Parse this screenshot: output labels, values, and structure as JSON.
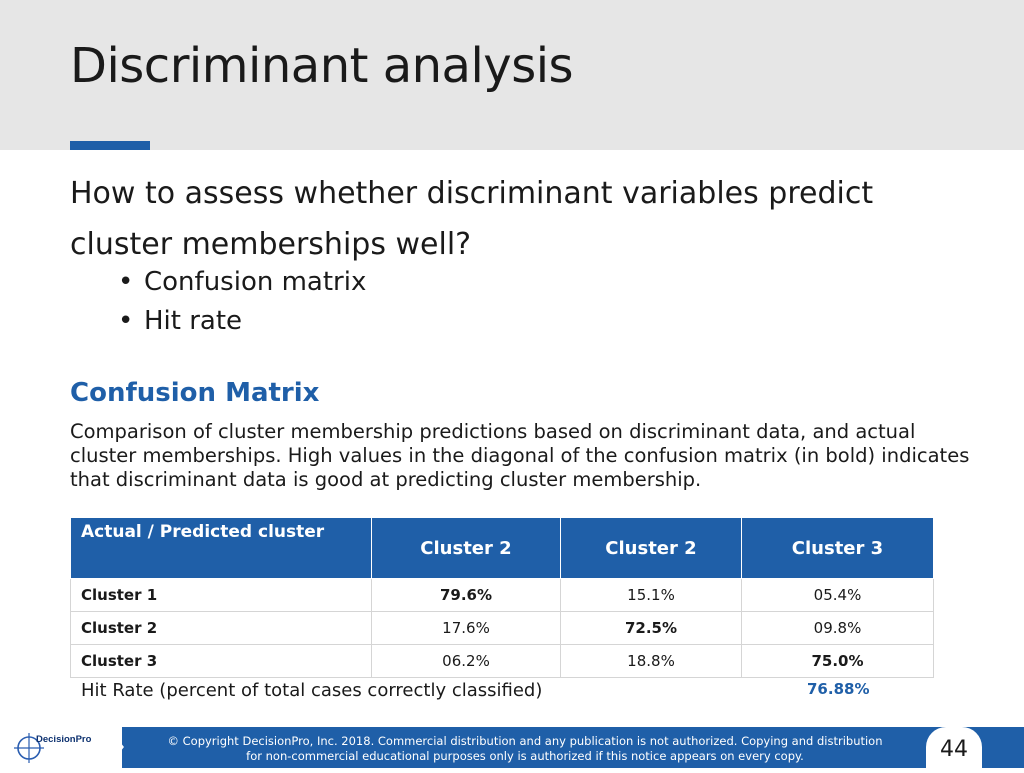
{
  "slide": {
    "title": "Discriminant analysis",
    "question": "How to assess whether discriminant variables predict cluster memberships well?",
    "bullets": [
      "Confusion matrix",
      "Hit rate"
    ],
    "bullet_char": "•",
    "section_heading": "Confusion Matrix",
    "description": "Comparison of cluster membership predictions based on discriminant data, and actual cluster memberships. High values in the diagonal of the confusion matrix (in bold) indicates that discriminant data is good at predicting cluster membership."
  },
  "confusion_matrix": {
    "corner_header": "Actual / Predicted cluster",
    "column_headers": [
      "Cluster 2",
      "Cluster 2",
      "Cluster 3"
    ],
    "rows": [
      {
        "label": "Cluster 1",
        "values": [
          "79.6%",
          "15.1%",
          "05.4%"
        ]
      },
      {
        "label": "Cluster 2",
        "values": [
          "17.6%",
          "72.5%",
          "09.8%"
        ]
      },
      {
        "label": "Cluster 3",
        "values": [
          "06.2%",
          "18.8%",
          "75.0%"
        ]
      }
    ]
  },
  "hit_rate": {
    "label": "Hit Rate (percent of total cases correctly classified)",
    "value": "76.88%"
  },
  "footer": {
    "logo_text": "DecisionPro",
    "copyright_line1": "© Copyright DecisionPro, Inc.  2018. Commercial distribution and any publication is not authorized. Copying and distribution",
    "copyright_line2": "for non-commercial educational purposes only is authorized if this notice appears on every copy.",
    "page_number": "44"
  },
  "colors": {
    "accent": "#1f5fa8",
    "header_band": "#e6e6e6"
  },
  "icons": {
    "logo": "crosshair-globe-icon"
  }
}
